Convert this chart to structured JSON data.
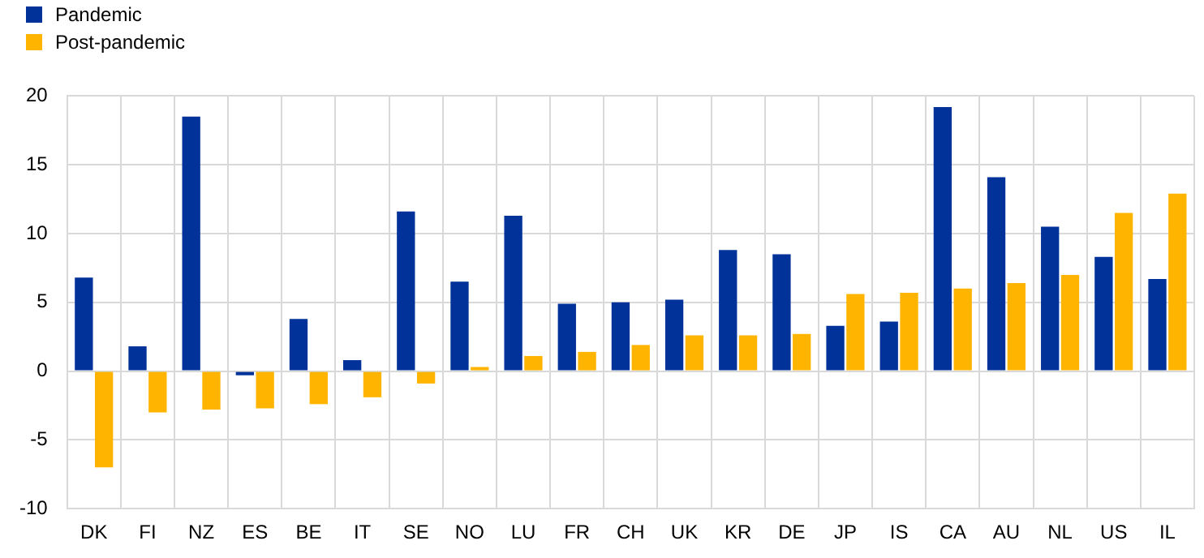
{
  "chart_data": {
    "type": "bar",
    "categories": [
      "DK",
      "FI",
      "NZ",
      "ES",
      "BE",
      "IT",
      "SE",
      "NO",
      "LU",
      "FR",
      "CH",
      "UK",
      "KR",
      "DE",
      "JP",
      "IS",
      "CA",
      "AU",
      "NL",
      "US",
      "IL"
    ],
    "series": [
      {
        "name": "Pandemic",
        "color": "#003299",
        "values": [
          6.8,
          1.8,
          18.5,
          -0.3,
          3.8,
          0.8,
          11.6,
          6.5,
          11.3,
          4.9,
          5.0,
          5.2,
          8.8,
          8.5,
          3.3,
          3.6,
          19.2,
          14.1,
          10.5,
          8.3,
          6.7
        ]
      },
      {
        "name": "Post-pandemic",
        "color": "#ffb400",
        "values": [
          -7.0,
          -3.0,
          -2.8,
          -2.7,
          -2.4,
          -1.9,
          -0.9,
          0.3,
          1.1,
          1.4,
          1.9,
          2.6,
          2.6,
          2.7,
          5.6,
          5.7,
          6.0,
          6.4,
          7.0,
          11.5,
          12.9
        ]
      }
    ],
    "ylim": [
      -10,
      20
    ],
    "yticks": [
      -10,
      -5,
      0,
      5,
      10,
      15,
      20
    ],
    "grid": true,
    "legend": "top left"
  }
}
